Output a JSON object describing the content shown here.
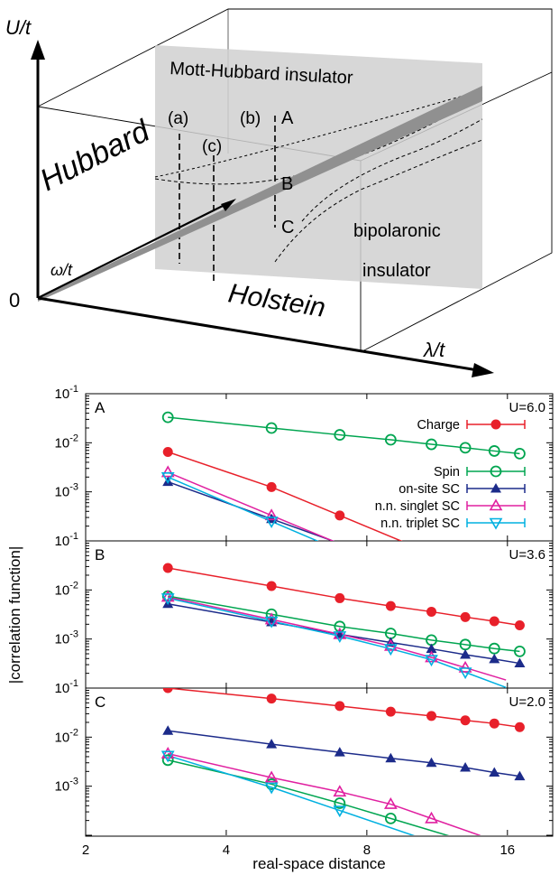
{
  "diagram": {
    "axis_u": "U/t",
    "axis_omega": "ω/t",
    "axis_lambda": "λ/t",
    "origin": "0",
    "hubbard": "Hubbard",
    "holstein": "Holstein",
    "mott": "Mott-Hubbard insulator",
    "bipolaronic_1": "bipolaronic",
    "bipolaronic_2": "insulator",
    "point_a_paren": "(a)",
    "point_b_paren": "(b)",
    "point_c_paren": "(c)",
    "point_A": "A",
    "point_B": "B",
    "point_C": "C"
  },
  "chart_data": [
    {
      "type": "scatter",
      "panel": "A",
      "label": "U=6.0",
      "xscale": "log",
      "yscale": "log",
      "xlim": [
        2,
        20
      ],
      "ylim": [
        0.1,
        0.0001
      ],
      "series": [
        {
          "name": "Charge",
          "color": "#e8202a",
          "marker": "filled-circle",
          "x": [
            3,
            5,
            7
          ],
          "y": [
            0.0065,
            0.00125,
            0.00033
          ]
        },
        {
          "name": "Spin",
          "color": "#00a550",
          "marker": "open-circle",
          "x": [
            3,
            5,
            7,
            9,
            11,
            13,
            15,
            17
          ],
          "y": [
            0.033,
            0.02,
            0.0145,
            0.0115,
            0.0093,
            0.0079,
            0.0068,
            0.006
          ]
        },
        {
          "name": "on-site SC",
          "color": "#1c2b8a",
          "marker": "filled-triangle",
          "x": [
            3,
            5
          ],
          "y": [
            0.0016,
            0.00028
          ]
        },
        {
          "name": "n.n. singlet SC",
          "color": "#e020a0",
          "marker": "open-triangle",
          "x": [
            3,
            5
          ],
          "y": [
            0.0025,
            0.00033
          ]
        },
        {
          "name": "n.n. triplet SC",
          "color": "#00b0e0",
          "marker": "open-triangle-down",
          "x": [
            3,
            5
          ],
          "y": [
            0.002,
            0.00025
          ]
        }
      ]
    },
    {
      "type": "scatter",
      "panel": "B",
      "label": "U=3.6",
      "xscale": "log",
      "yscale": "log",
      "xlim": [
        2,
        20
      ],
      "ylim": [
        0.1,
        0.0001
      ],
      "series": [
        {
          "name": "Charge",
          "color": "#e8202a",
          "marker": "filled-circle",
          "x": [
            3,
            5,
            7,
            9,
            11,
            13,
            15,
            17
          ],
          "y": [
            0.028,
            0.012,
            0.0068,
            0.0047,
            0.0036,
            0.0028,
            0.0023,
            0.0019
          ]
        },
        {
          "name": "Spin",
          "color": "#00a550",
          "marker": "open-circle",
          "x": [
            3,
            5,
            7,
            9,
            11,
            13,
            15,
            17
          ],
          "y": [
            0.0075,
            0.0032,
            0.0018,
            0.0013,
            0.00095,
            0.00077,
            0.00064,
            0.00056
          ]
        },
        {
          "name": "on-site SC",
          "color": "#1c2b8a",
          "marker": "filled-triangle",
          "x": [
            3,
            5,
            7,
            9,
            11,
            13,
            15,
            17
          ],
          "y": [
            0.0052,
            0.0022,
            0.00125,
            0.00085,
            0.00063,
            0.00048,
            0.00039,
            0.00032
          ]
        },
        {
          "name": "n.n. singlet SC",
          "color": "#e020a0",
          "marker": "open-triangle",
          "x": [
            3,
            5,
            7,
            9,
            11,
            13
          ],
          "y": [
            0.0072,
            0.0025,
            0.00125,
            0.00072,
            0.00042,
            0.00026
          ]
        },
        {
          "name": "n.n. triplet SC",
          "color": "#00b0e0",
          "marker": "open-triangle-down",
          "x": [
            3,
            5,
            7,
            9,
            11,
            13
          ],
          "y": [
            0.0068,
            0.0023,
            0.00115,
            0.00063,
            0.00038,
            0.00021
          ]
        }
      ]
    },
    {
      "type": "scatter",
      "panel": "C",
      "label": "U=2.0",
      "xscale": "log",
      "yscale": "log",
      "xlim": [
        2,
        20
      ],
      "ylim": [
        0.1,
        0.0001
      ],
      "series": [
        {
          "name": "Charge",
          "color": "#e8202a",
          "marker": "filled-circle",
          "x": [
            3,
            5,
            7,
            9,
            11,
            13,
            15,
            17
          ],
          "y": [
            0.1,
            0.061,
            0.043,
            0.033,
            0.027,
            0.022,
            0.019,
            0.016
          ]
        },
        {
          "name": "Spin",
          "color": "#00a550",
          "marker": "open-circle",
          "x": [
            3,
            5,
            7,
            9
          ],
          "y": [
            0.0034,
            0.0011,
            0.00045,
            0.00022
          ]
        },
        {
          "name": "on-site SC",
          "color": "#1c2b8a",
          "marker": "filled-triangle",
          "x": [
            3,
            5,
            7,
            9,
            11,
            13,
            15,
            17
          ],
          "y": [
            0.0135,
            0.0072,
            0.0049,
            0.0037,
            0.003,
            0.0024,
            0.0019,
            0.0016
          ]
        },
        {
          "name": "n.n. singlet SC",
          "color": "#e020a0",
          "marker": "open-triangle",
          "x": [
            3,
            5,
            7,
            9,
            11
          ],
          "y": [
            0.0046,
            0.0015,
            0.00077,
            0.00043,
            0.00022
          ]
        },
        {
          "name": "n.n. triplet SC",
          "color": "#00b0e0",
          "marker": "open-triangle-down",
          "x": [
            3,
            5,
            7
          ],
          "y": [
            0.0042,
            0.00095,
            0.00032
          ]
        }
      ]
    }
  ],
  "axes": {
    "xlabel": "real-space distance",
    "ylabel": "|correlation function|",
    "x_ticks": [
      {
        "value": 2,
        "label": "2"
      },
      {
        "value": 4,
        "label": "4"
      },
      {
        "value": 8,
        "label": "8"
      },
      {
        "value": 16,
        "label": "16"
      }
    ],
    "y_ticks": [
      {
        "base": "10",
        "exp": "-1",
        "value": 0.1
      },
      {
        "base": "10",
        "exp": "-2",
        "value": 0.01
      },
      {
        "base": "10",
        "exp": "-3",
        "value": 0.001
      }
    ]
  }
}
